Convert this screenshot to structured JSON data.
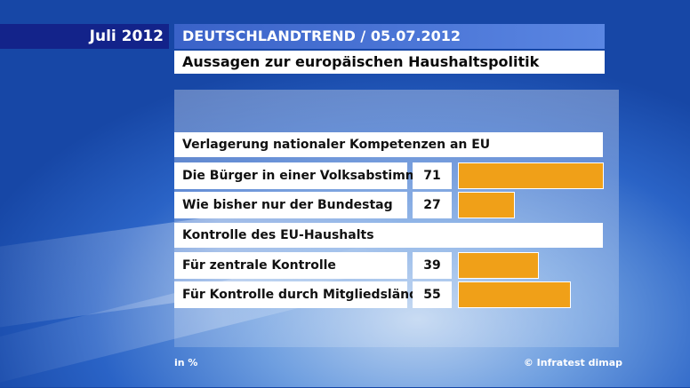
{
  "header": {
    "date": "Juli 2012",
    "title": "DEUTSCHLANDTREND / 05.07.2012",
    "subtitle": "Aussagen zur europäischen Haushaltspolitik"
  },
  "footer": {
    "unit": "in %",
    "source": "© Infratest dimap"
  },
  "colors": {
    "bar": "#f0a018",
    "header_dark": "#13238a",
    "header_title": "#3a62c8"
  },
  "chart_data": {
    "type": "bar",
    "orientation": "horizontal",
    "unit": "in %",
    "xlim": [
      0,
      71
    ],
    "groups": [
      {
        "title": "Verlagerung nationaler Kompetenzen an EU",
        "items": [
          {
            "label": "Die Bürger in einer Volksabstimmung",
            "value": 71
          },
          {
            "label": "Wie bisher nur der Bundestag",
            "value": 27
          }
        ]
      },
      {
        "title": "Kontrolle des EU-Haushalts",
        "items": [
          {
            "label": "Für zentrale Kontrolle",
            "value": 39
          },
          {
            "label": "Für Kontrolle durch Mitgliedsländer",
            "value": 55
          }
        ]
      }
    ]
  }
}
